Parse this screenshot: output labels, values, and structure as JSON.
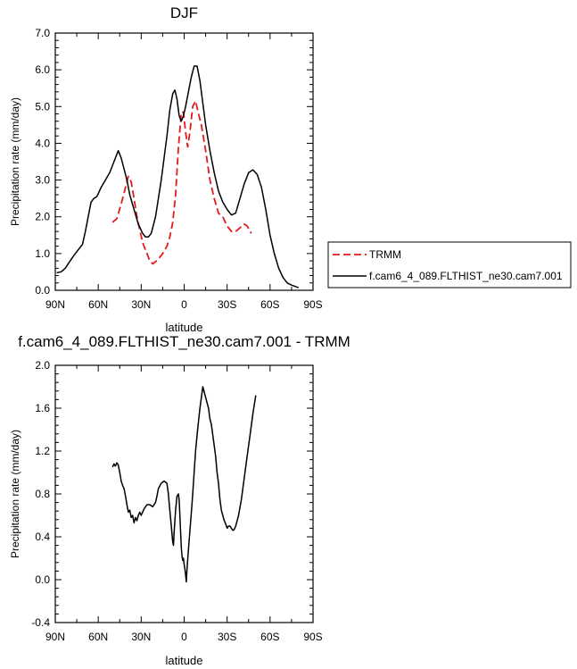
{
  "chart_data": [
    {
      "type": "line",
      "title": "DJF",
      "xlabel": "latitude",
      "ylabel": "Precipitation rate (mm/day)",
      "xlim": [
        90,
        -90
      ],
      "ylim": [
        0,
        7
      ],
      "x_tick_values": [
        90,
        60,
        30,
        0,
        -30,
        -60,
        -90
      ],
      "x_tick_labels": [
        "90N",
        "60N",
        "30N",
        "0",
        "30S",
        "60S",
        "90S"
      ],
      "y_tick_values": [
        0,
        1,
        2,
        3,
        4,
        5,
        6,
        7
      ],
      "y_tick_labels": [
        "0.0",
        "1.0",
        "2.0",
        "3.0",
        "4.0",
        "5.0",
        "6.0",
        "7.0"
      ],
      "legend": "outside-right",
      "series": [
        {
          "name": "TRMM",
          "color": "#e41a1c",
          "dash": true,
          "points": [
            [
              50,
              1.85
            ],
            [
              47,
              1.95
            ],
            [
              44,
              2.35
            ],
            [
              41,
              2.8
            ],
            [
              39,
              3.1
            ],
            [
              37,
              2.95
            ],
            [
              35,
              2.5
            ],
            [
              33,
              2.0
            ],
            [
              31,
              1.65
            ],
            [
              29,
              1.3
            ],
            [
              26,
              1.0
            ],
            [
              24,
              0.8
            ],
            [
              22,
              0.72
            ],
            [
              20,
              0.78
            ],
            [
              18,
              0.85
            ],
            [
              15,
              1.0
            ],
            [
              12,
              1.2
            ],
            [
              10,
              1.45
            ],
            [
              8,
              1.85
            ],
            [
              6,
              2.6
            ],
            [
              4,
              3.9
            ],
            [
              2,
              4.85
            ],
            [
              0.5,
              4.85
            ],
            [
              -1,
              4.3
            ],
            [
              -2.5,
              3.9
            ],
            [
              -4,
              4.3
            ],
            [
              -6,
              5.0
            ],
            [
              -8,
              5.15
            ],
            [
              -10,
              4.8
            ],
            [
              -12,
              4.5
            ],
            [
              -15,
              3.8
            ],
            [
              -18,
              3.0
            ],
            [
              -21,
              2.5
            ],
            [
              -24,
              2.1
            ],
            [
              -27,
              2.0
            ],
            [
              -30,
              1.75
            ],
            [
              -33,
              1.6
            ],
            [
              -36,
              1.6
            ],
            [
              -39,
              1.7
            ],
            [
              -42,
              1.8
            ],
            [
              -44,
              1.75
            ],
            [
              -46,
              1.6
            ],
            [
              -47,
              1.55
            ]
          ]
        },
        {
          "name": "f.cam6_4_089.FLTHIST_ne30.cam7.001",
          "color": "#000000",
          "dash": false,
          "points": [
            [
              89,
              0.48
            ],
            [
              86,
              0.5
            ],
            [
              83,
              0.6
            ],
            [
              80,
              0.78
            ],
            [
              77,
              0.95
            ],
            [
              74,
              1.1
            ],
            [
              71,
              1.25
            ],
            [
              69,
              1.6
            ],
            [
              67,
              2.0
            ],
            [
              65,
              2.4
            ],
            [
              63,
              2.5
            ],
            [
              61,
              2.55
            ],
            [
              58,
              2.8
            ],
            [
              55,
              3.0
            ],
            [
              52,
              3.2
            ],
            [
              49,
              3.5
            ],
            [
              46,
              3.8
            ],
            [
              44,
              3.6
            ],
            [
              42,
              3.3
            ],
            [
              40,
              3.0
            ],
            [
              38,
              2.6
            ],
            [
              35,
              2.2
            ],
            [
              32,
              1.8
            ],
            [
              29,
              1.55
            ],
            [
              27,
              1.45
            ],
            [
              25,
              1.45
            ],
            [
              23,
              1.55
            ],
            [
              20,
              2.0
            ],
            [
              18,
              2.5
            ],
            [
              16,
              3.0
            ],
            [
              14,
              3.6
            ],
            [
              12,
              4.2
            ],
            [
              10,
              4.9
            ],
            [
              8,
              5.35
            ],
            [
              6.5,
              5.45
            ],
            [
              5,
              5.2
            ],
            [
              3.5,
              4.75
            ],
            [
              2,
              4.6
            ],
            [
              0.5,
              4.75
            ],
            [
              -1,
              5.0
            ],
            [
              -3,
              5.4
            ],
            [
              -5,
              5.8
            ],
            [
              -7,
              6.1
            ],
            [
              -9,
              6.1
            ],
            [
              -11,
              5.7
            ],
            [
              -13,
              5.1
            ],
            [
              -15,
              4.5
            ],
            [
              -18,
              3.8
            ],
            [
              -21,
              3.2
            ],
            [
              -24,
              2.7
            ],
            [
              -27,
              2.4
            ],
            [
              -30,
              2.2
            ],
            [
              -33,
              2.05
            ],
            [
              -36,
              2.1
            ],
            [
              -39,
              2.5
            ],
            [
              -42,
              2.9
            ],
            [
              -45,
              3.2
            ],
            [
              -48,
              3.28
            ],
            [
              -51,
              3.15
            ],
            [
              -54,
              2.8
            ],
            [
              -57,
              2.2
            ],
            [
              -60,
              1.5
            ],
            [
              -63,
              1.0
            ],
            [
              -66,
              0.6
            ],
            [
              -69,
              0.35
            ],
            [
              -72,
              0.2
            ],
            [
              -75,
              0.14
            ],
            [
              -78,
              0.1
            ],
            [
              -80,
              0.07
            ]
          ]
        }
      ]
    },
    {
      "type": "line",
      "title": "f.cam6_4_089.FLTHIST_ne30.cam7.001 - TRMM",
      "xlabel": "latitude",
      "ylabel": "Precipitation rate (mm/day)",
      "xlim": [
        90,
        -90
      ],
      "ylim": [
        -0.4,
        2.0
      ],
      "x_tick_values": [
        90,
        60,
        30,
        0,
        -30,
        -60,
        -90
      ],
      "x_tick_labels": [
        "90N",
        "60N",
        "30N",
        "0",
        "30S",
        "60S",
        "90S"
      ],
      "y_tick_values": [
        -0.4,
        0.0,
        0.4,
        0.8,
        1.2,
        1.6,
        2.0
      ],
      "y_tick_labels": [
        "-0.4",
        "0.0",
        "0.4",
        "0.8",
        "1.2",
        "1.6",
        "2.0"
      ],
      "series": [
        {
          "color": "#000000",
          "dash": false,
          "points": [
            [
              50,
              1.05
            ],
            [
              49,
              1.08
            ],
            [
              48,
              1.06
            ],
            [
              47,
              1.09
            ],
            [
              46,
              1.07
            ],
            [
              45,
              1.0
            ],
            [
              44,
              0.92
            ],
            [
              43,
              0.88
            ],
            [
              42,
              0.85
            ],
            [
              41,
              0.78
            ],
            [
              40,
              0.7
            ],
            [
              39,
              0.63
            ],
            [
              38,
              0.65
            ],
            [
              37,
              0.58
            ],
            [
              36,
              0.6
            ],
            [
              35,
              0.53
            ],
            [
              34,
              0.58
            ],
            [
              33,
              0.55
            ],
            [
              32,
              0.6
            ],
            [
              31,
              0.63
            ],
            [
              30,
              0.6
            ],
            [
              28,
              0.66
            ],
            [
              26,
              0.7
            ],
            [
              24,
              0.7
            ],
            [
              22,
              0.68
            ],
            [
              20,
              0.72
            ],
            [
              19,
              0.78
            ],
            [
              18,
              0.85
            ],
            [
              16,
              0.9
            ],
            [
              14,
              0.92
            ],
            [
              12,
              0.9
            ],
            [
              11,
              0.8
            ],
            [
              10,
              0.65
            ],
            [
              9,
              0.5
            ],
            [
              8,
              0.35
            ],
            [
              7.5,
              0.32
            ],
            [
              7,
              0.45
            ],
            [
              6,
              0.65
            ],
            [
              5,
              0.78
            ],
            [
              4,
              0.8
            ],
            [
              3.5,
              0.74
            ],
            [
              3,
              0.6
            ],
            [
              2.5,
              0.45
            ],
            [
              2,
              0.3
            ],
            [
              1.5,
              0.22
            ],
            [
              1,
              0.18
            ],
            [
              0.5,
              0.2
            ],
            [
              0.2,
              0.16
            ],
            [
              -0.5,
              0.1
            ],
            [
              -1,
              0.05
            ],
            [
              -1.5,
              -0.02
            ],
            [
              -2,
              0.1
            ],
            [
              -3,
              0.28
            ],
            [
              -4,
              0.45
            ],
            [
              -5,
              0.62
            ],
            [
              -6,
              0.8
            ],
            [
              -7,
              1.0
            ],
            [
              -8,
              1.2
            ],
            [
              -9,
              1.35
            ],
            [
              -10,
              1.48
            ],
            [
              -11,
              1.6
            ],
            [
              -12,
              1.7
            ],
            [
              -13,
              1.8
            ],
            [
              -14,
              1.75
            ],
            [
              -15,
              1.7
            ],
            [
              -16,
              1.65
            ],
            [
              -17,
              1.6
            ],
            [
              -18,
              1.5
            ],
            [
              -19,
              1.45
            ],
            [
              -20,
              1.35
            ],
            [
              -21,
              1.25
            ],
            [
              -22,
              1.15
            ],
            [
              -23,
              1.0
            ],
            [
              -24,
              0.9
            ],
            [
              -25,
              0.75
            ],
            [
              -26,
              0.65
            ],
            [
              -27,
              0.6
            ],
            [
              -28,
              0.55
            ],
            [
              -29,
              0.52
            ],
            [
              -30,
              0.48
            ],
            [
              -31,
              0.5
            ],
            [
              -32,
              0.5
            ],
            [
              -33,
              0.48
            ],
            [
              -34,
              0.46
            ],
            [
              -35,
              0.47
            ],
            [
              -36,
              0.5
            ],
            [
              -37,
              0.55
            ],
            [
              -38,
              0.6
            ],
            [
              -40,
              0.75
            ],
            [
              -42,
              0.95
            ],
            [
              -44,
              1.15
            ],
            [
              -46,
              1.35
            ],
            [
              -48,
              1.55
            ],
            [
              -50,
              1.72
            ]
          ]
        }
      ]
    }
  ]
}
